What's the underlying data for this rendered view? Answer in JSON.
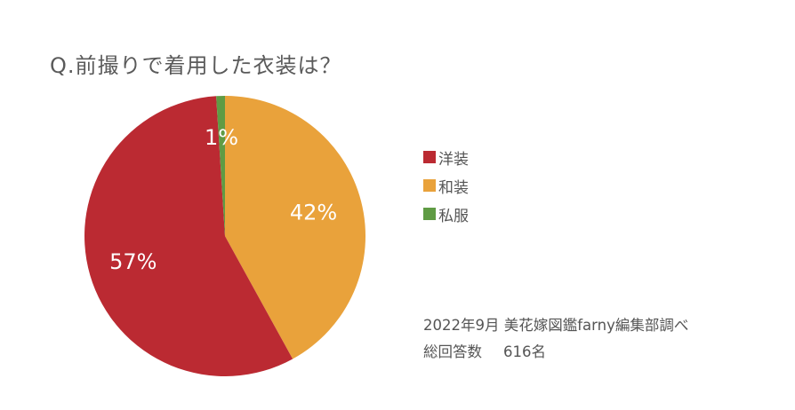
{
  "title": "Q.前撮りで着用した衣装は？",
  "chart_data": {
    "type": "pie",
    "categories": [
      "洋装",
      "和装",
      "私服"
    ],
    "values": [
      57,
      42,
      1
    ],
    "labels": [
      "57%",
      "42%",
      "1%"
    ],
    "colors": [
      "#bb2a32",
      "#e9a23b",
      "#5f9b44"
    ],
    "legend_position": "right"
  },
  "footnote": {
    "line1": "2022年9月 美花嫁図鑑farny編集部調べ",
    "line2_label": "総回答数",
    "line2_value": "616名"
  }
}
